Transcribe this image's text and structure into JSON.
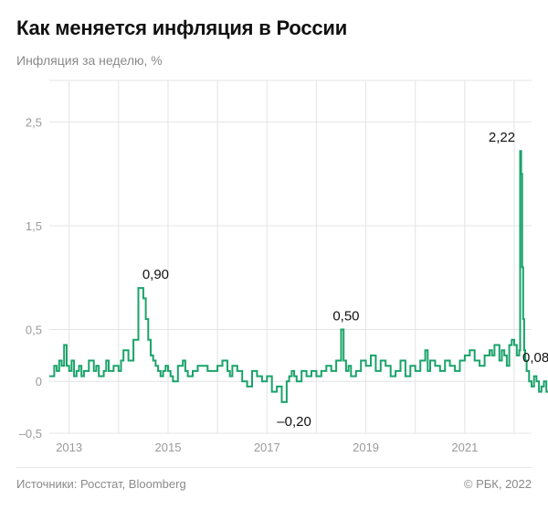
{
  "header": {
    "title": "Как меняется инфляция в России",
    "subtitle": "Инфляция за неделю, %"
  },
  "footer": {
    "source": "Источники: Росстат, Bloomberg",
    "copyright": "© РБК, 2022"
  },
  "colors": {
    "line": "#1aa36a",
    "grid": "#e4e4e4",
    "axis_text": "#9a9a9a",
    "annotation_text": "#111111"
  },
  "chart_data": {
    "type": "line",
    "title": "Как меняется инфляция в России",
    "subtitle": "Инфляция за неделю, %",
    "xlabel": "",
    "ylabel": "",
    "xlim": [
      2012.6,
      2022.35
    ],
    "ylim": [
      -0.5,
      2.9
    ],
    "y_ticks": [
      -0.5,
      0,
      0.5,
      1.5,
      2.5
    ],
    "y_tick_labels": [
      "–0,5",
      "0",
      "0,5",
      "1,5",
      "2,5"
    ],
    "x_ticks": [
      2013,
      2015,
      2017,
      2019,
      2021
    ],
    "x_tick_labels": [
      "2013",
      "2015",
      "2017",
      "2019",
      "2021"
    ],
    "grid": true,
    "legend": "none",
    "series": [
      {
        "x": [
          2012.6,
          2012.7,
          2012.75,
          2012.8,
          2012.85,
          2012.9,
          2012.95,
          2013.0,
          2013.05,
          2013.1,
          2013.15,
          2013.2,
          2013.25,
          2013.3,
          2013.4,
          2013.5,
          2013.55,
          2013.6,
          2013.7,
          2013.75,
          2013.8,
          2013.9,
          2014.0,
          2014.05,
          2014.1,
          2014.2,
          2014.3,
          2014.4,
          2014.5,
          2014.55,
          2014.6,
          2014.65,
          2014.7,
          2014.75,
          2014.8,
          2014.85,
          2014.9,
          2014.95,
          2015.0,
          2015.05,
          2015.1,
          2015.2,
          2015.3,
          2015.35,
          2015.4,
          2015.5,
          2015.6,
          2015.8,
          2016.0,
          2016.1,
          2016.2,
          2016.25,
          2016.3,
          2016.4,
          2016.5,
          2016.6,
          2016.7,
          2016.8,
          2016.9,
          2017.0,
          2017.1,
          2017.2,
          2017.3,
          2017.4,
          2017.45,
          2017.5,
          2017.55,
          2017.6,
          2017.7,
          2017.8,
          2017.9,
          2018.0,
          2018.1,
          2018.2,
          2018.3,
          2018.4,
          2018.5,
          2018.55,
          2018.6,
          2018.65,
          2018.7,
          2018.8,
          2018.9,
          2019.0,
          2019.1,
          2019.2,
          2019.3,
          2019.4,
          2019.5,
          2019.6,
          2019.7,
          2019.8,
          2019.9,
          2020.0,
          2020.1,
          2020.2,
          2020.25,
          2020.3,
          2020.4,
          2020.5,
          2020.6,
          2020.7,
          2020.8,
          2020.9,
          2021.0,
          2021.1,
          2021.2,
          2021.3,
          2021.4,
          2021.5,
          2021.55,
          2021.6,
          2021.7,
          2021.75,
          2021.8,
          2021.85,
          2021.9,
          2021.95,
          2022.0,
          2022.05,
          2022.1,
          2022.12,
          2022.14,
          2022.16,
          2022.18,
          2022.2,
          2022.22,
          2022.25,
          2022.3,
          2022.35,
          2022.4,
          2022.45,
          2022.5,
          2022.55,
          2022.6,
          2022.65,
          2022.7,
          2022.75,
          2022.8,
          2022.85,
          2022.9
        ],
        "values": [
          0.05,
          0.15,
          0.1,
          0.2,
          0.15,
          0.35,
          0.15,
          0.1,
          0.2,
          0.05,
          0.1,
          0.15,
          0.05,
          0.1,
          0.2,
          0.1,
          0.15,
          0.05,
          0.1,
          0.2,
          0.1,
          0.15,
          0.1,
          0.2,
          0.3,
          0.2,
          0.4,
          0.9,
          0.8,
          0.6,
          0.4,
          0.25,
          0.2,
          0.15,
          0.1,
          0.05,
          0.1,
          0.15,
          0.1,
          0.05,
          0.0,
          0.15,
          0.2,
          0.1,
          0.05,
          0.1,
          0.15,
          0.1,
          0.15,
          0.2,
          0.1,
          0.05,
          0.15,
          0.1,
          0.0,
          -0.05,
          0.1,
          0.05,
          0.0,
          0.05,
          -0.1,
          -0.05,
          -0.2,
          0.0,
          0.05,
          0.1,
          0.05,
          0.0,
          0.1,
          0.05,
          0.1,
          0.05,
          0.1,
          0.15,
          0.1,
          0.2,
          0.5,
          0.2,
          0.1,
          0.15,
          0.05,
          0.1,
          0.2,
          0.15,
          0.25,
          0.1,
          0.2,
          0.15,
          0.05,
          0.1,
          0.2,
          0.05,
          0.15,
          0.1,
          0.2,
          0.3,
          0.1,
          0.2,
          0.15,
          0.1,
          0.2,
          0.15,
          0.1,
          0.2,
          0.25,
          0.3,
          0.2,
          0.15,
          0.25,
          0.3,
          0.25,
          0.35,
          0.2,
          0.3,
          0.25,
          0.15,
          0.35,
          0.4,
          0.35,
          0.25,
          0.3,
          2.22,
          2.0,
          1.1,
          0.6,
          0.3,
          0.2,
          0.1,
          0.0,
          -0.05,
          0.05,
          0.0,
          -0.1,
          -0.05,
          0.0,
          -0.1,
          -0.05,
          -0.15,
          -0.1,
          0.05,
          0.08
        ]
      }
    ],
    "annotations": [
      {
        "x": 2014.75,
        "y": 0.9,
        "text": "0,90"
      },
      {
        "x": 2017.55,
        "y": -0.2,
        "text": "–0,20"
      },
      {
        "x": 2018.6,
        "y": 0.5,
        "text": "0,50"
      },
      {
        "x": 2021.75,
        "y": 2.22,
        "text": "2,22"
      },
      {
        "x": 2022.35,
        "y": 0.08,
        "text": "0,08"
      }
    ]
  }
}
